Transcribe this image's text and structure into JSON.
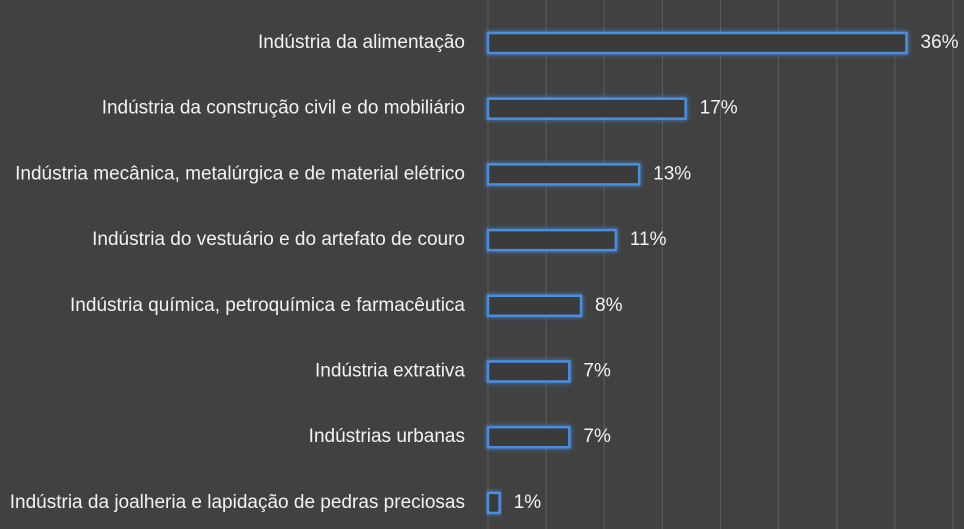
{
  "chart_data": {
    "type": "barh",
    "categories": [
      "Indústria da alimentação",
      "Indústria da construção civil e do mobiliário",
      "Indústria mecânica, metalúrgica e de material elétrico",
      "Indústria do vestuário e do artefato de couro",
      "Indústria química, petroquímica e farmacêutica",
      "Indústria extrativa",
      "Indústrias urbanas",
      "Indústria da joalheria e lapidação de pedras preciosas"
    ],
    "values": [
      36,
      17,
      13,
      11,
      8,
      7,
      7,
      1
    ],
    "value_labels": [
      "36%",
      "17%",
      "13%",
      "11%",
      "8%",
      "7%",
      "7%",
      "1%"
    ],
    "color": "#4a8fe0",
    "xlim": [
      0,
      40
    ],
    "xticks": [
      0,
      5,
      10,
      15,
      20,
      25,
      30,
      35,
      40
    ],
    "grid": true
  }
}
